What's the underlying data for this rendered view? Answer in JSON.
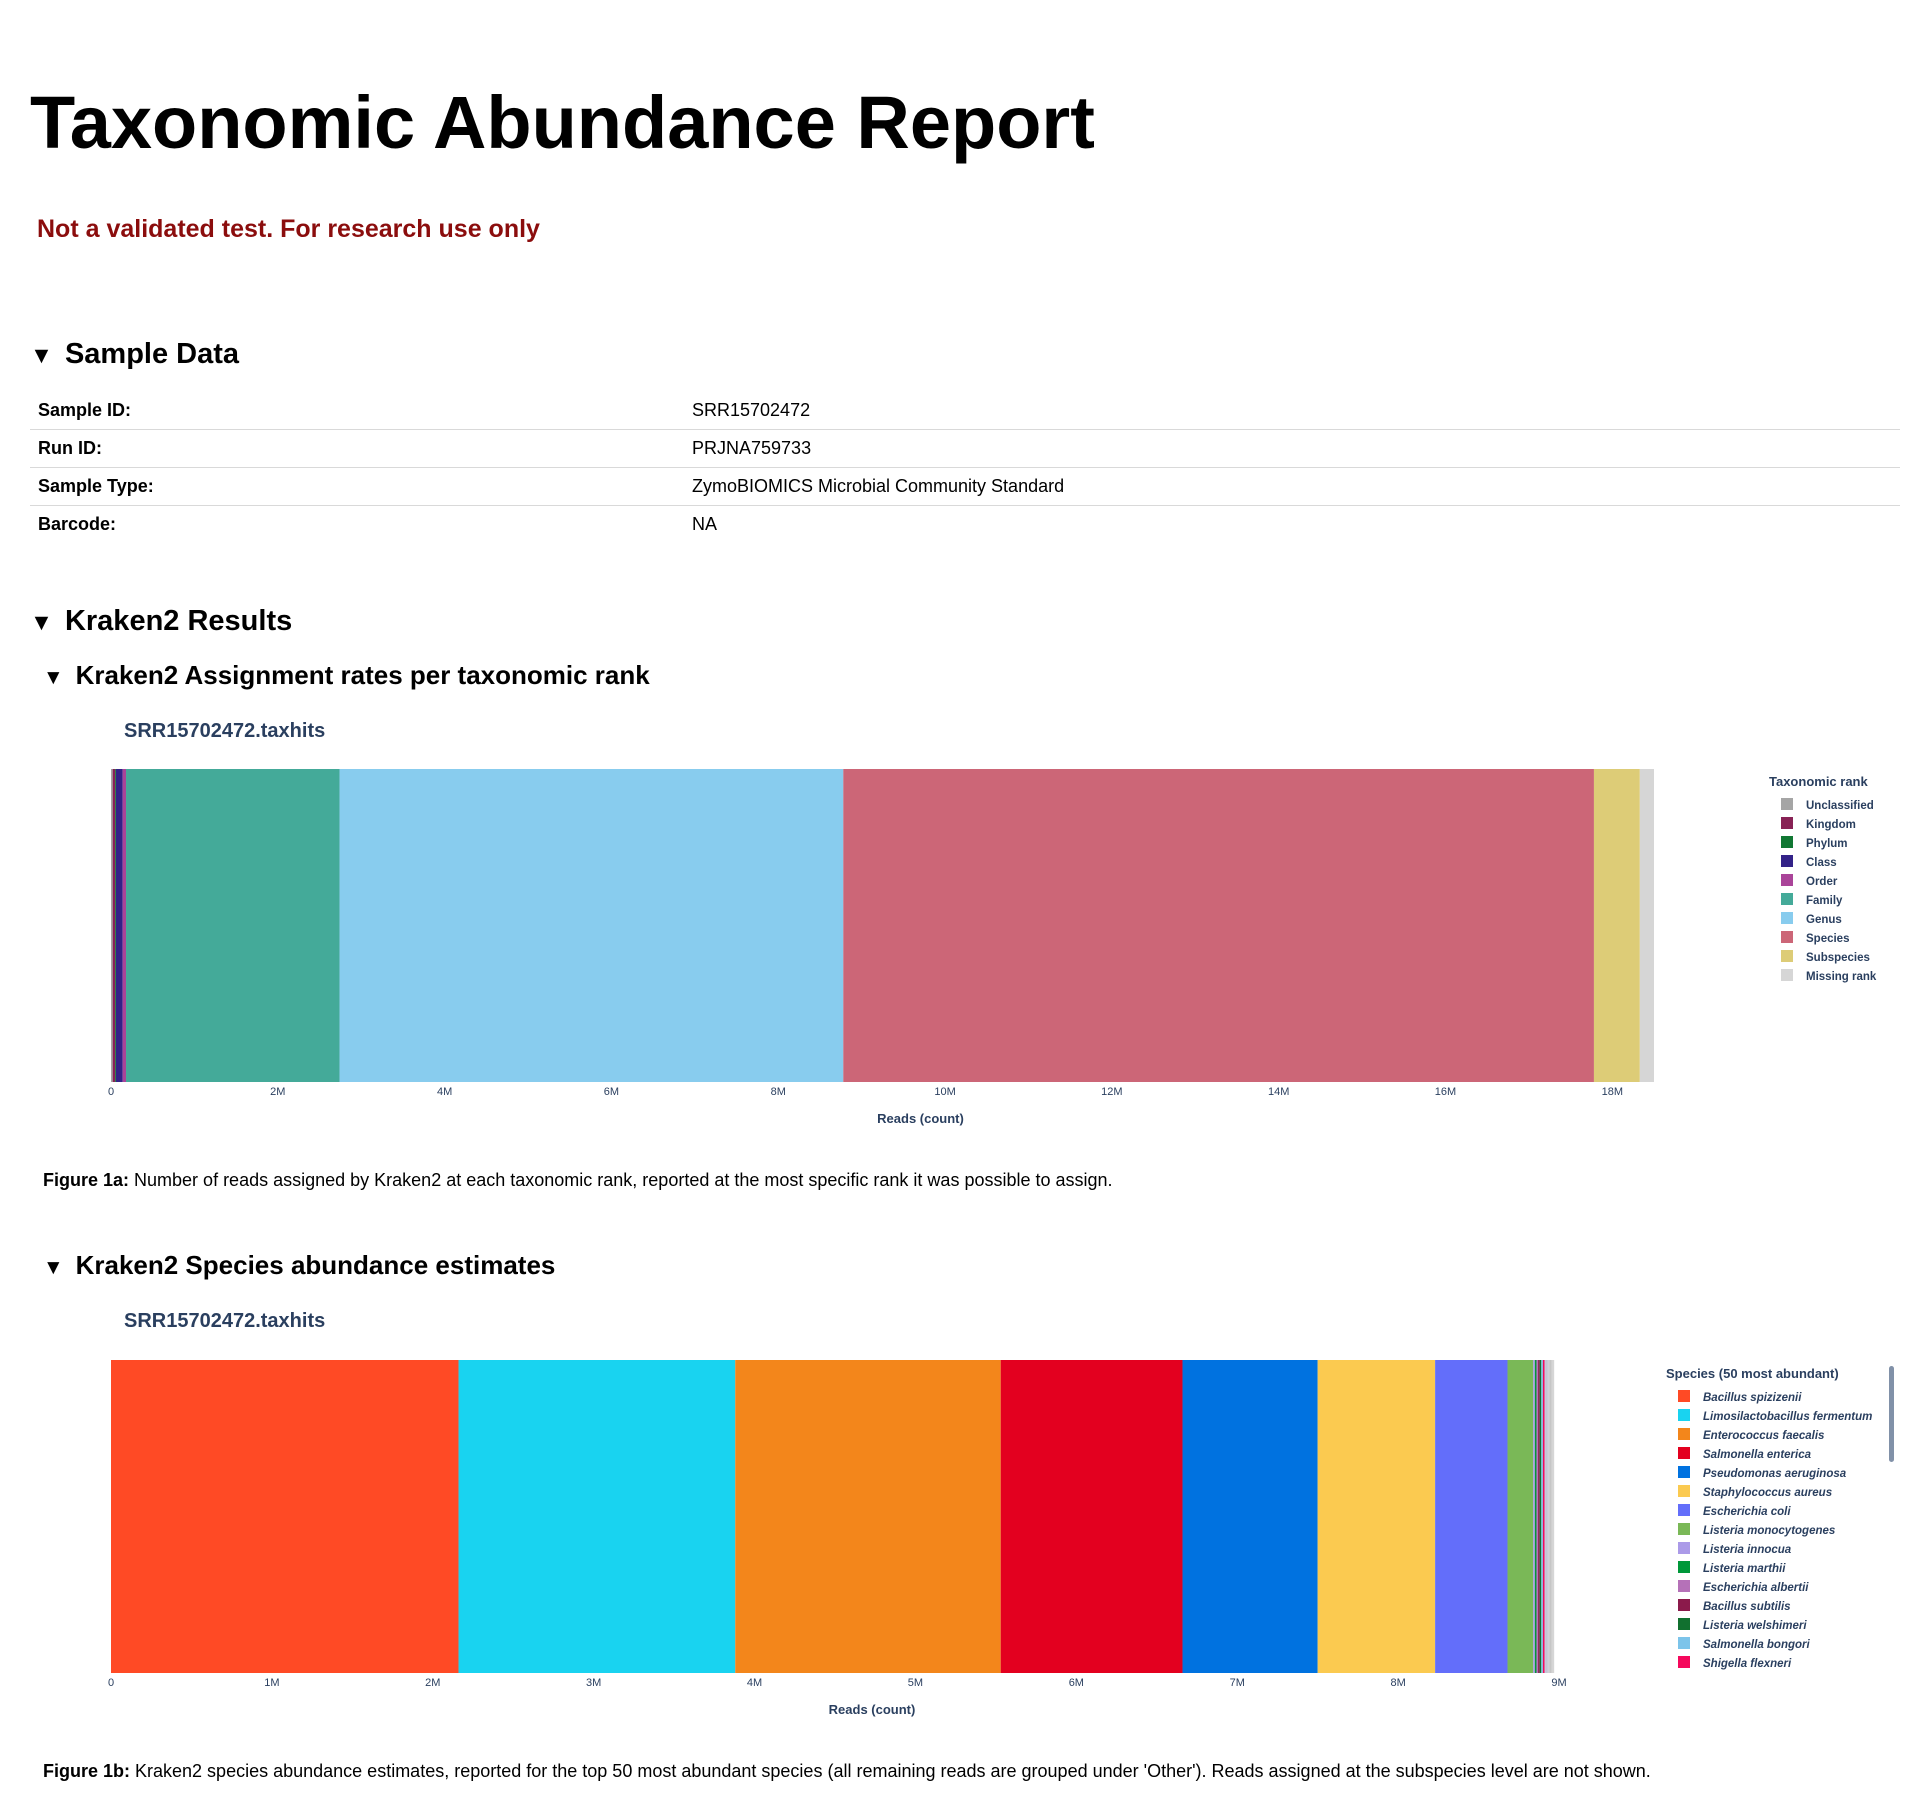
{
  "report": {
    "title": "Taxonomic Abundance Report",
    "disclaimer": "Not a validated test. For research use only"
  },
  "sample_section": {
    "heading": "Sample Data",
    "toggle": "▼",
    "rows": [
      {
        "label": "Sample ID:",
        "value": "SRR15702472"
      },
      {
        "label": "Run ID:",
        "value": "PRJNA759733"
      },
      {
        "label": "Sample Type:",
        "value": "ZymoBIOMICS Microbial Community Standard"
      },
      {
        "label": "Barcode:",
        "value": "NA"
      }
    ]
  },
  "kraken_section": {
    "heading": "Kraken2 Results",
    "toggle": "▼",
    "rank_sub": {
      "heading": "Kraken2 Assignment rates per taxonomic rank",
      "toggle": "▼"
    },
    "species_sub": {
      "heading": "Kraken2 Species abundance estimates",
      "toggle": "▼"
    }
  },
  "figures": {
    "fig1a": {
      "plot_title": "SRR15702472.taxhits",
      "caption_label": "Figure 1a:",
      "caption_text": " Number of reads assigned by Kraken2 at each taxonomic rank, reported at the most specific rank it was possible to assign."
    },
    "fig1b": {
      "plot_title": "SRR15702472.taxhits",
      "caption_label": "Figure 1b:",
      "caption_text": " Kraken2 species abundance estimates, reported for the top 50 most abundant species (all remaining reads are grouped under 'Other'). Reads assigned at the subspecies level are not shown."
    }
  },
  "chart_data": [
    {
      "type": "bar",
      "orientation": "horizontal",
      "stacked": true,
      "title": "SRR15702472.taxhits",
      "xlabel": "Reads (count)",
      "ylabel": "",
      "xlim": [
        0,
        18500000
      ],
      "xticks": [
        0,
        2000000,
        4000000,
        6000000,
        8000000,
        10000000,
        12000000,
        14000000,
        16000000,
        18000000
      ],
      "xtick_labels": [
        "0",
        "2M",
        "4M",
        "6M",
        "8M",
        "10M",
        "12M",
        "14M",
        "16M",
        "18M"
      ],
      "legend_title": "Taxonomic rank",
      "legend_position": "right",
      "series": [
        {
          "name": "Unclassified",
          "value": 20000,
          "color": "#a5a5a5"
        },
        {
          "name": "Kingdom",
          "value": 30000,
          "color": "#882255"
        },
        {
          "name": "Phylum",
          "value": 10000,
          "color": "#117733"
        },
        {
          "name": "Class",
          "value": 80000,
          "color": "#332288"
        },
        {
          "name": "Order",
          "value": 40000,
          "color": "#aa4499"
        },
        {
          "name": "Family",
          "value": 2560000,
          "color": "#44aa99"
        },
        {
          "name": "Genus",
          "value": 6040000,
          "color": "#88ccee"
        },
        {
          "name": "Species",
          "value": 9000000,
          "color": "#cc6677"
        },
        {
          "name": "Subspecies",
          "value": 550000,
          "color": "#ddcc77"
        },
        {
          "name": "Missing rank",
          "value": 170000,
          "color": "#d6d6d6"
        }
      ]
    },
    {
      "type": "bar",
      "orientation": "horizontal",
      "stacked": true,
      "title": "SRR15702472.taxhits",
      "xlabel": "Reads (count)",
      "ylabel": "",
      "xlim": [
        0,
        9000000
      ],
      "xticks": [
        0,
        1000000,
        2000000,
        3000000,
        4000000,
        5000000,
        6000000,
        7000000,
        8000000,
        9000000
      ],
      "xtick_labels": [
        "0",
        "1M",
        "2M",
        "3M",
        "4M",
        "5M",
        "6M",
        "7M",
        "8M",
        "9M"
      ],
      "legend_title": "Species (50 most abundant)",
      "legend_position": "right",
      "series": [
        {
          "name": "Bacillus spizizenii",
          "value": 2160000,
          "color": "#ff4a25"
        },
        {
          "name": "Limosilactobacillus fermentum",
          "value": 1720000,
          "color": "#19d3f0"
        },
        {
          "name": "Enterococcus faecalis",
          "value": 1650000,
          "color": "#f3861b"
        },
        {
          "name": "Salmonella enterica",
          "value": 1130000,
          "color": "#e3001f"
        },
        {
          "name": "Pseudomonas aeruginosa",
          "value": 840000,
          "color": "#0072e0"
        },
        {
          "name": "Staphylococcus aureus",
          "value": 730000,
          "color": "#fbca50"
        },
        {
          "name": "Escherichia coli",
          "value": 450000,
          "color": "#636efa"
        },
        {
          "name": "Listeria monocytogenes",
          "value": 160000,
          "color": "#7ab857"
        },
        {
          "name": "Listeria innocua",
          "value": 10000,
          "color": "#ab9ae8"
        },
        {
          "name": "Listeria marthii",
          "value": 10000,
          "color": "#00983a"
        },
        {
          "name": "Escherichia albertii",
          "value": 10000,
          "color": "#b571b8"
        },
        {
          "name": "Bacillus subtilis",
          "value": 10000,
          "color": "#8b1a4b"
        },
        {
          "name": "Listeria welshimeri",
          "value": 10000,
          "color": "#11702f"
        },
        {
          "name": "Salmonella bongori",
          "value": 10000,
          "color": "#7cc4ea"
        },
        {
          "name": "Shigella flexneri",
          "value": 10000,
          "color": "#f5085c"
        },
        {
          "name": "",
          "value": 10000,
          "color": "#c8c8d8"
        },
        {
          "name": "",
          "value": 10000,
          "color": "#bebed0"
        },
        {
          "name": "",
          "value": 10000,
          "color": "#d0d0d8"
        },
        {
          "name": "",
          "value": 10000,
          "color": "#c4c4c4"
        },
        {
          "name": "",
          "value": 10000,
          "color": "#cfcfcf"
        },
        {
          "name": "",
          "value": 10000,
          "color": "#d6d6d6"
        }
      ]
    }
  ]
}
